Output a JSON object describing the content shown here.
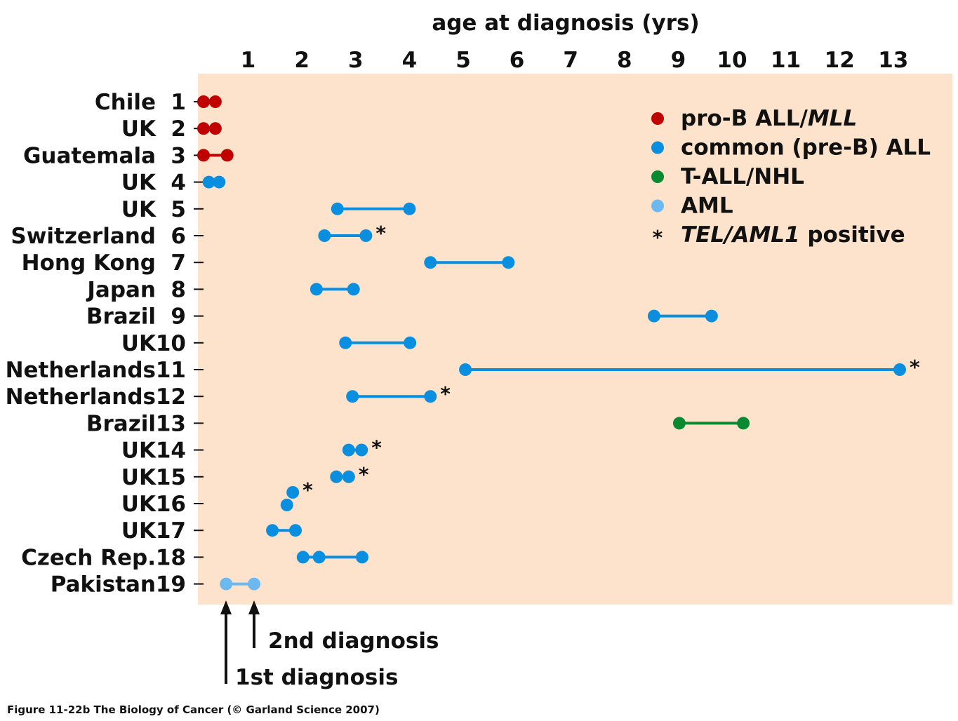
{
  "chart_data": {
    "type": "scatter",
    "title": "age at diagnosis (yrs)",
    "xlabel": "age at diagnosis (yrs)",
    "xlim": [
      0,
      13.6
    ],
    "x_ticks": [
      1,
      2,
      3,
      4,
      5,
      6,
      7,
      8,
      9,
      10,
      11,
      12,
      13
    ],
    "legend_position": "top-right",
    "colors": {
      "proB": "#c00000",
      "common": "#0a8fe0",
      "tall": "#0a8a30",
      "aml": "#6cb9f0",
      "background": "#fde3cc"
    },
    "legend": [
      {
        "key": "proB",
        "label_main": "pro-B ALL/",
        "label_italic": "MLL",
        "symbol": "dot"
      },
      {
        "key": "common",
        "label_main": "common (pre-B) ALL",
        "label_italic": "",
        "symbol": "dot"
      },
      {
        "key": "tall",
        "label_main": "T-ALL/NHL",
        "label_italic": "",
        "symbol": "dot"
      },
      {
        "key": "aml",
        "label_main": "AML",
        "label_italic": "",
        "symbol": "dot"
      },
      {
        "key": "star",
        "label_italic": "TEL/AML1",
        "label_main": " positive",
        "symbol": "*"
      }
    ],
    "rows": [
      {
        "country": "Chile",
        "n": "1",
        "type": "proB",
        "ages": [
          0.17,
          0.39
        ],
        "tel": false
      },
      {
        "country": "UK",
        "n": "2",
        "type": "proB",
        "ages": [
          0.17,
          0.39
        ],
        "tel": false
      },
      {
        "country": "Guatemala",
        "n": "3",
        "type": "proB",
        "ages": [
          0.17,
          0.61
        ],
        "tel": false
      },
      {
        "country": "UK",
        "n": "4",
        "type": "common",
        "ages": [
          0.27,
          0.46
        ],
        "tel": false
      },
      {
        "country": "UK",
        "n": "5",
        "type": "common",
        "ages": [
          2.66,
          4.0
        ],
        "tel": false
      },
      {
        "country": "Switzerland",
        "n": "6",
        "type": "common",
        "ages": [
          2.42,
          3.19
        ],
        "tel": true
      },
      {
        "country": "Hong Kong",
        "n": "7",
        "type": "common",
        "ages": [
          4.39,
          5.84
        ],
        "tel": false
      },
      {
        "country": "Japan",
        "n": "8",
        "type": "common",
        "ages": [
          2.27,
          2.96
        ],
        "tel": false
      },
      {
        "country": "Brazil",
        "n": "9",
        "type": "common",
        "ages": [
          8.55,
          9.62
        ],
        "tel": false
      },
      {
        "country": "UK",
        "n": "10",
        "type": "common",
        "ages": [
          2.81,
          4.01
        ],
        "tel": false
      },
      {
        "country": "Netherlands",
        "n": "11",
        "type": "common",
        "ages": [
          5.04,
          13.12
        ],
        "tel": true
      },
      {
        "country": "Netherlands",
        "n": "12",
        "type": "common",
        "ages": [
          2.94,
          4.39
        ],
        "tel": true
      },
      {
        "country": "Brazil",
        "n": "13",
        "type": "tall",
        "ages": [
          9.02,
          10.21
        ],
        "tel": false
      },
      {
        "country": "UK",
        "n": "14",
        "type": "common",
        "ages": [
          2.87,
          3.11
        ],
        "tel": true
      },
      {
        "country": "UK",
        "n": "15",
        "type": "common",
        "ages": [
          2.64,
          2.87
        ],
        "tel": true
      },
      {
        "country": "UK",
        "n": "16",
        "type": "common",
        "ages": [
          1.72,
          1.83
        ],
        "tel": true,
        "split": true
      },
      {
        "country": "UK",
        "n": "17",
        "type": "common",
        "ages": [
          1.45,
          1.88
        ],
        "tel": false
      },
      {
        "country": "Czech Rep.",
        "n": "18",
        "type": "common",
        "ages": [
          2.02,
          2.32,
          3.12
        ],
        "tel": false
      },
      {
        "country": "Pakistan",
        "n": "19",
        "type": "aml",
        "ages": [
          0.59,
          1.11
        ],
        "tel": false
      }
    ],
    "annotations": {
      "first": "1st diagnosis",
      "second": "2nd diagnosis"
    }
  },
  "caption": "Figure 11-22b  The Biology of Cancer (© Garland Science 2007)"
}
